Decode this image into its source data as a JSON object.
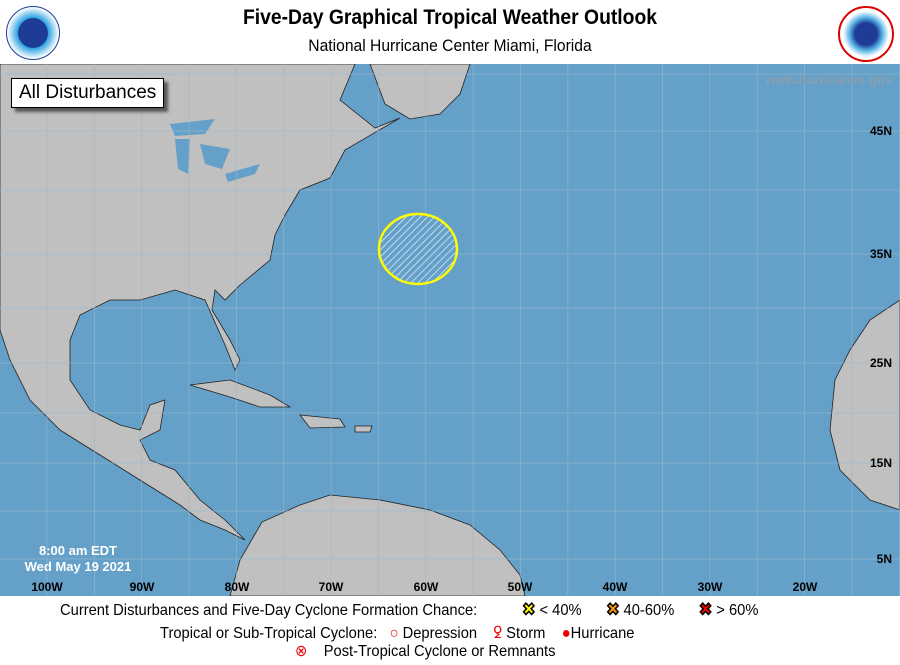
{
  "header": {
    "title": "Five-Day Graphical Tropical Weather Outlook",
    "subtitle": "National Hurricane Center  Miami, Florida",
    "left_logo": "NOAA",
    "right_logo": "NATIONAL WEATHER SERVICE"
  },
  "map": {
    "view_label": "All Disturbances",
    "website": "www.hurricanes.gov",
    "time": "8:00 am EDT",
    "date": "Wed May 19 2021",
    "lon_labels": [
      "100W",
      "90W",
      "80W",
      "70W",
      "60W",
      "50W",
      "40W",
      "30W",
      "20W"
    ],
    "lat_labels": [
      "45N",
      "35N",
      "25N",
      "15N",
      "5N"
    ],
    "colors": {
      "ocean": "#64a0c8",
      "land": "#c0c0c0",
      "disturbance": "#ffff00"
    },
    "disturbances": [
      {
        "area_center_lat": 37,
        "area_center_lon": "60W",
        "chance_category": "< 40%"
      }
    ]
  },
  "legend": {
    "row1_label": "Current Disturbances and Five-Day Cyclone Formation Chance:",
    "low": "< 40%",
    "medium": "40-60%",
    "high": "> 60%",
    "low_color": "#ffff00",
    "medium_color": "#ff9900",
    "high_color": "#ff0000",
    "row2_label": "Tropical or Sub-Tropical Cyclone:",
    "depression": "Depression",
    "storm": "Storm",
    "hurricane": "Hurricane",
    "row3_label": "Post-Tropical Cyclone or Remnants"
  }
}
